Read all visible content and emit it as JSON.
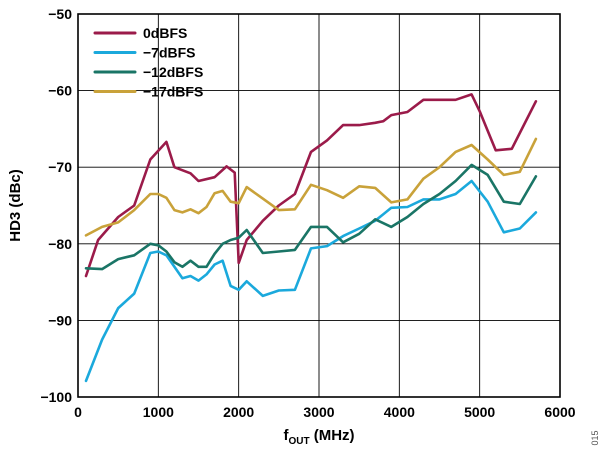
{
  "chart_data": {
    "type": "line",
    "title": "",
    "xlabel": {
      "main": "f",
      "subscript": "OUT",
      "unit": " (MHz)"
    },
    "ylabel": "HD3 (dBc)",
    "xlim": [
      0,
      6000
    ],
    "ylim": [
      -100,
      -50
    ],
    "x_ticks": [
      "0",
      "1000",
      "2000",
      "3000",
      "4000",
      "5000",
      "6000"
    ],
    "y_ticks": [
      "−50",
      "−60",
      "−70",
      "−80",
      "−90",
      "−100"
    ],
    "grid": true,
    "legend_position": "top-left",
    "figure_id": "015",
    "series": [
      {
        "name": "0dBFS",
        "color": "#9b1b4a",
        "x": [
          100,
          250,
          500,
          700,
          900,
          1100,
          1200,
          1400,
          1500,
          1700,
          1850,
          1950,
          2000,
          2100,
          2300,
          2500,
          2700,
          2900,
          3100,
          3300,
          3500,
          3700,
          3800,
          3900,
          4100,
          4300,
          4500,
          4700,
          4900,
          5000,
          5200,
          5400,
          5700
        ],
        "y": [
          -84.2,
          -79.5,
          -76.5,
          -75,
          -69,
          -66.7,
          -70,
          -70.8,
          -71.8,
          -71.3,
          -69.9,
          -70.7,
          -82.5,
          -79.5,
          -77,
          -75,
          -73.5,
          -68,
          -66.5,
          -64.5,
          -64.5,
          -64.2,
          -64,
          -63.2,
          -62.8,
          -61.2,
          -61.2,
          -61.2,
          -60.5,
          -62.7,
          -67.8,
          -67.6,
          -61.4
        ]
      },
      {
        "name": "−7dBFS",
        "color": "#1ba9dc",
        "x": [
          100,
          300,
          500,
          700,
          900,
          1000,
          1100,
          1200,
          1300,
          1400,
          1500,
          1600,
          1700,
          1800,
          1900,
          2000,
          2100,
          2300,
          2500,
          2700,
          2900,
          3100,
          3300,
          3500,
          3700,
          3900,
          4100,
          4300,
          4500,
          4700,
          4900,
          5100,
          5300,
          5500,
          5700
        ],
        "y": [
          -97.9,
          -92.5,
          -88.4,
          -86.5,
          -81.2,
          -81,
          -81.5,
          -83,
          -84.5,
          -84.2,
          -84.8,
          -84,
          -82.7,
          -82.2,
          -85.5,
          -86,
          -84.9,
          -86.8,
          -86.1,
          -86,
          -80.6,
          -80.3,
          -79,
          -78,
          -77,
          -75.3,
          -75.2,
          -74.2,
          -74.2,
          -73.5,
          -71.8,
          -74.5,
          -78.5,
          -78,
          -75.9
        ]
      },
      {
        "name": "−12dBFS",
        "color": "#1a7566",
        "x": [
          100,
          300,
          500,
          700,
          900,
          1000,
          1100,
          1200,
          1300,
          1400,
          1500,
          1600,
          1700,
          1800,
          1900,
          2000,
          2100,
          2300,
          2500,
          2700,
          2900,
          3100,
          3300,
          3500,
          3700,
          3900,
          4100,
          4300,
          4500,
          4700,
          4900,
          5100,
          5300,
          5500,
          5700
        ],
        "y": [
          -83.2,
          -83.3,
          -82,
          -81.5,
          -80,
          -80.2,
          -81,
          -82.4,
          -83,
          -82.2,
          -83,
          -83,
          -81.3,
          -80,
          -79.5,
          -79.2,
          -78.2,
          -81.2,
          -81,
          -80.8,
          -77.8,
          -77.8,
          -79.8,
          -78.7,
          -76.8,
          -77.8,
          -76.5,
          -74.8,
          -73.5,
          -71.8,
          -69.7,
          -71,
          -74.5,
          -74.8,
          -71.2
        ]
      },
      {
        "name": "−17dBFS",
        "color": "#c9a23a",
        "x": [
          100,
          300,
          500,
          700,
          900,
          1000,
          1100,
          1200,
          1300,
          1400,
          1500,
          1600,
          1700,
          1800,
          1900,
          2000,
          2100,
          2300,
          2500,
          2700,
          2900,
          3100,
          3300,
          3500,
          3700,
          3900,
          4100,
          4300,
          4500,
          4700,
          4900,
          5100,
          5300,
          5500,
          5700
        ],
        "y": [
          -78.9,
          -77.8,
          -77.2,
          -75.6,
          -73.5,
          -73.5,
          -74,
          -75.6,
          -75.9,
          -75.5,
          -76,
          -75.2,
          -73.4,
          -73.1,
          -74.5,
          -74.7,
          -72.6,
          -74.1,
          -75.6,
          -75.5,
          -72.3,
          -73,
          -74,
          -72.5,
          -72.7,
          -74.6,
          -74.2,
          -71.5,
          -70,
          -68,
          -67.1,
          -69,
          -71,
          -70.6,
          -66.3
        ]
      }
    ]
  }
}
